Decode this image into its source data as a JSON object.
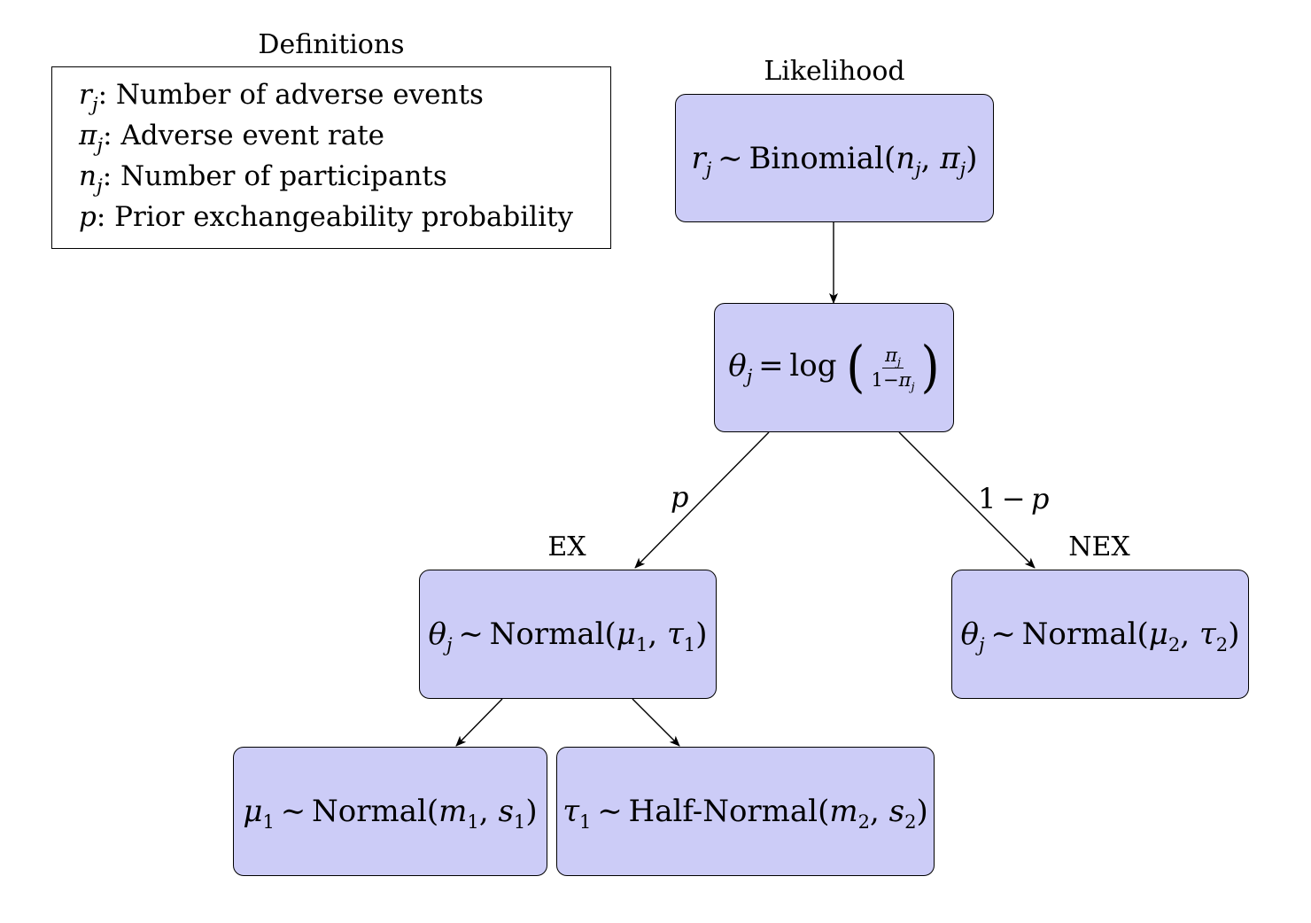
{
  "defs": {
    "title": "Definitions",
    "rows": [
      {
        "symbol": "r",
        "sub": "j",
        "text": ": Number of adverse events"
      },
      {
        "symbol": "π",
        "sub": "j",
        "text": ": Adverse event rate"
      },
      {
        "symbol": "n",
        "sub": "j",
        "text": ": Number of participants"
      },
      {
        "symbol": "p",
        "sub": "",
        "text": ": Prior exchangeability probability"
      }
    ]
  },
  "captions": {
    "likelihood": "Likelihood",
    "ex": "EX",
    "nex": "NEX"
  },
  "nodes": {
    "likelihood": {
      "lhs": "r",
      "lhs_sub": "j",
      "op": "∼",
      "dist": "Binomial",
      "a": "n",
      "a_sub": "j",
      "b": "π",
      "b_sub": "j"
    },
    "logit": {
      "lhs": "θ",
      "lhs_sub": "j",
      "op": "=",
      "fn": "log",
      "num": "π",
      "num_sub": "j",
      "den_pre": "1−",
      "den": "π",
      "den_sub": "j"
    },
    "ex": {
      "lhs": "θ",
      "lhs_sub": "j",
      "op": "∼",
      "dist": "Normal",
      "a": "μ",
      "a_sub": "1",
      "b": "τ",
      "b_sub": "1"
    },
    "nex": {
      "lhs": "θ",
      "lhs_sub": "j",
      "op": "∼",
      "dist": "Normal",
      "a": "μ",
      "a_sub": "2",
      "b": "τ",
      "b_sub": "2"
    },
    "mu": {
      "lhs": "μ",
      "lhs_sub": "1",
      "op": "∼",
      "dist": "Normal",
      "a": "m",
      "a_sub": "1",
      "b": "s",
      "b_sub": "1"
    },
    "tau": {
      "lhs": "τ",
      "lhs_sub": "1",
      "op": "∼",
      "dist": "Half-Normal",
      "a": "m",
      "a_sub": "2",
      "b": "s",
      "b_sub": "2"
    }
  },
  "edge_labels": {
    "ex": "p",
    "nex_num": "1",
    "nex_op": "−",
    "nex_var": "p"
  }
}
